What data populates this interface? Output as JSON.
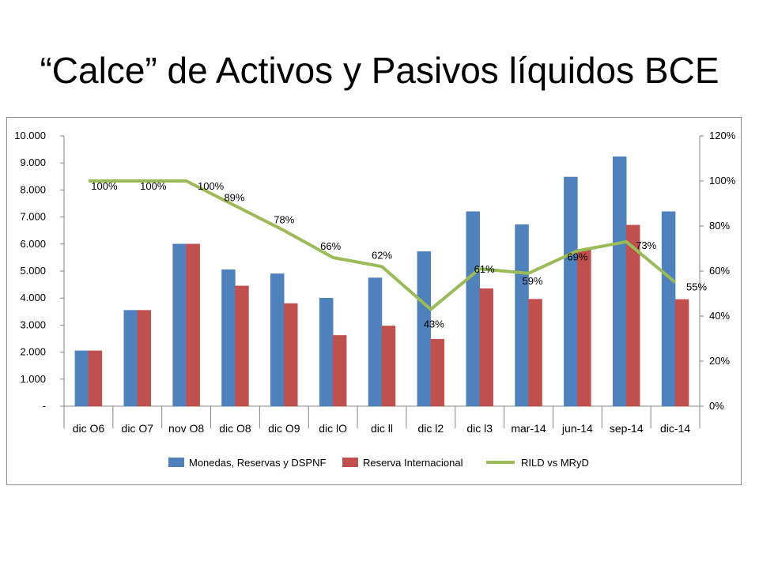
{
  "slide": {
    "title": "“Calce” de Activos y Pasivos líquidos BCE"
  },
  "chart_data": {
    "type": "bar",
    "categories": [
      "dic O6",
      "dic O7",
      "nov O8",
      "dic O8",
      "dic O9",
      "dic lO",
      "dic ll",
      "dic l2",
      "dic l3",
      "mar-14",
      "jun-14",
      "sep-14",
      "dic-14"
    ],
    "series": [
      {
        "name": "Monedas, Reservas y DSPNF",
        "type": "bar",
        "axis": "left",
        "color": "#4f81bd",
        "values": [
          2050,
          3550,
          6000,
          5050,
          4900,
          4000,
          4750,
          5720,
          7200,
          6720,
          8480,
          9230,
          7200
        ]
      },
      {
        "name": "Reserva Internacional",
        "type": "bar",
        "axis": "left",
        "color": "#c0504d",
        "values": [
          2050,
          3550,
          6000,
          4450,
          3800,
          2620,
          2970,
          2480,
          4350,
          3960,
          5800,
          6700,
          3950
        ]
      },
      {
        "name": "RILD vs MRyD",
        "type": "line",
        "axis": "right",
        "color": "#9bbb59",
        "values": [
          100,
          100,
          100,
          89,
          78,
          66,
          62,
          43,
          61,
          59,
          69,
          73,
          55
        ],
        "labels": [
          "100%",
          "100%",
          "100%",
          "89%",
          "78%",
          "66%",
          "62%",
          "43%",
          "61%",
          "59%",
          "69%",
          "73%",
          "55%"
        ]
      }
    ],
    "y_left": {
      "min": 0,
      "max": 10000,
      "step": 1000,
      "ticks": [
        "-",
        "1.000",
        "2.000",
        "3.000",
        "4.000",
        "5.000",
        "6.000",
        "7.000",
        "8.000",
        "9.000",
        "10.000"
      ]
    },
    "y_right": {
      "min": 0,
      "max": 120,
      "step": 20,
      "ticks": [
        "0%",
        "20%",
        "40%",
        "60%",
        "80%",
        "100%",
        "120%"
      ]
    },
    "grid": false,
    "legend_position": "bottom"
  }
}
